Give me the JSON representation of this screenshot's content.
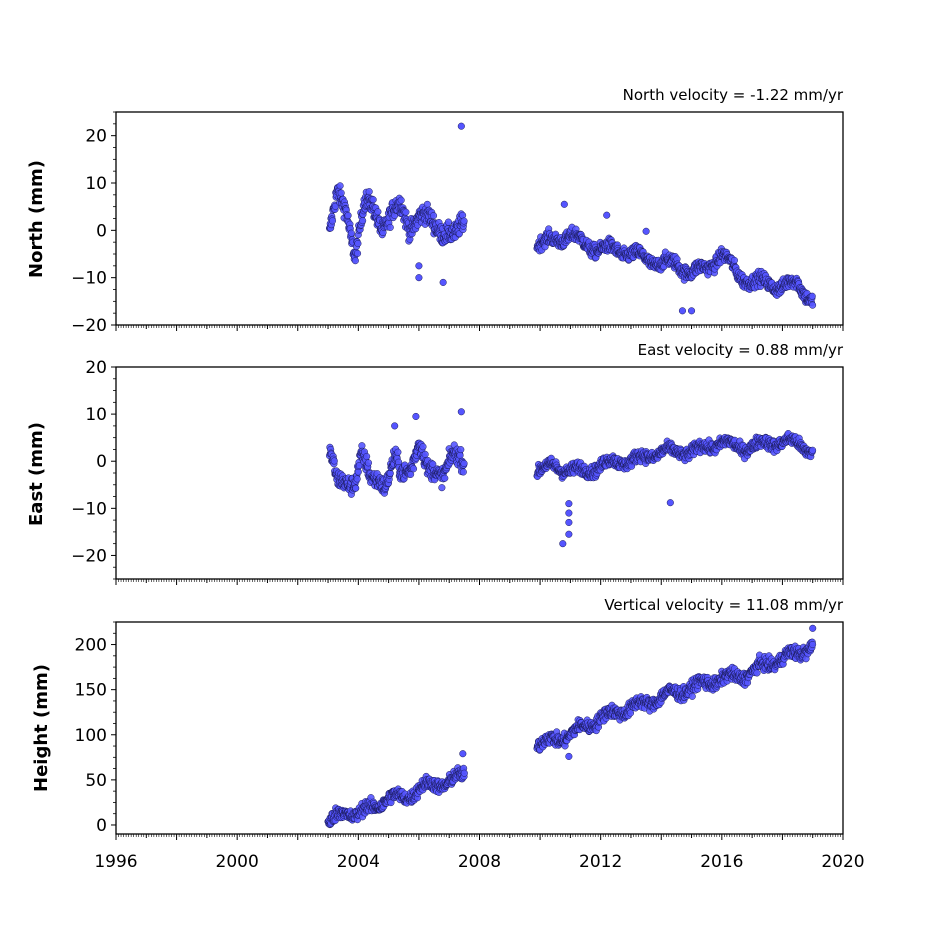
{
  "chart_data": [
    {
      "type": "scatter",
      "title": "North velocity = -1.22 mm/yr",
      "xlabel": "",
      "ylabel": "North (mm)",
      "xlim": [
        1996,
        2020
      ],
      "ylim": [
        -20,
        25
      ],
      "yticks": [
        -20,
        -10,
        0,
        10,
        20
      ],
      "ytick_labels": [
        "−20",
        "−10",
        "0",
        "10",
        "20"
      ],
      "grid": false,
      "marker_color": "#5555ff",
      "segments": [
        {
          "t": [
            2003.05,
            2003.3,
            2003.6,
            2003.9,
            2004.2,
            2004.5,
            2004.8,
            2005.1,
            2005.4,
            2005.7,
            2006.0,
            2006.3,
            2006.6,
            2006.9,
            2007.2,
            2007.5
          ],
          "v": [
            -1,
            7,
            5,
            -5,
            5,
            5,
            1,
            3,
            5,
            1,
            3,
            2,
            1,
            0,
            -2,
            2
          ],
          "noise": 2.6
        },
        {
          "t": [
            2009.9,
            2010.5,
            2011.0,
            2011.5,
            2012.0,
            2012.5,
            2013.0,
            2013.5,
            2014.0,
            2014.5,
            2015.0,
            2015.5,
            2016.0,
            2016.5,
            2017.0,
            2017.5,
            2018.0,
            2018.5,
            2019.0
          ],
          "v": [
            -3,
            -2,
            -1,
            -3,
            -4,
            -4,
            -5,
            -6,
            -7,
            -7,
            -9,
            -8,
            -5,
            -9,
            -11,
            -11,
            -12,
            -11,
            -15
          ],
          "noise": 1.8
        }
      ],
      "outliers": [
        {
          "x": 2007.4,
          "y": 22
        },
        {
          "x": 2006.8,
          "y": -11
        },
        {
          "x": 2006.0,
          "y": -10
        },
        {
          "x": 2006.0,
          "y": -7.5
        },
        {
          "x": 2014.7,
          "y": -17
        },
        {
          "x": 2015.0,
          "y": -17
        },
        {
          "x": 2010.8,
          "y": 5.5
        },
        {
          "x": 2012.2,
          "y": 3.2
        },
        {
          "x": 2013.5,
          "y": -0.2
        }
      ]
    },
    {
      "type": "scatter",
      "title": "East velocity = 0.88 mm/yr",
      "xlabel": "",
      "ylabel": "East (mm)",
      "xlim": [
        1996,
        2020
      ],
      "ylim": [
        -25,
        20
      ],
      "yticks": [
        -20,
        -10,
        0,
        10,
        20
      ],
      "ytick_labels": [
        "−20",
        "−10",
        "0",
        "10",
        "20"
      ],
      "grid": false,
      "marker_color": "#5555ff",
      "segments": [
        {
          "t": [
            2003.05,
            2003.3,
            2003.6,
            2003.9,
            2004.1,
            2004.4,
            2004.7,
            2004.9,
            2005.2,
            2005.4,
            2005.7,
            2006.0,
            2006.3,
            2006.5,
            2006.8,
            2007.1,
            2007.5
          ],
          "v": [
            2,
            -5,
            -4,
            -4,
            1,
            -4,
            -3,
            -5,
            0,
            -3,
            -1,
            4,
            -3,
            -2,
            -2,
            1,
            -1
          ],
          "noise": 2.4
        },
        {
          "t": [
            2009.9,
            2010.5,
            2011.0,
            2011.5,
            2012.0,
            2012.5,
            2013.0,
            2013.5,
            2014.0,
            2014.5,
            2015.0,
            2015.5,
            2016.0,
            2016.5,
            2017.0,
            2017.5,
            2018.0,
            2018.5,
            2019.0
          ],
          "v": [
            -2,
            -1,
            -2,
            -2,
            -1,
            0,
            0,
            1,
            2,
            2,
            2,
            3,
            4,
            3,
            3,
            4,
            4,
            4,
            2
          ],
          "noise": 1.6
        }
      ],
      "outliers": [
        {
          "x": 2007.4,
          "y": 10.5
        },
        {
          "x": 2005.9,
          "y": 9.5
        },
        {
          "x": 2010.75,
          "y": -17.5
        },
        {
          "x": 2010.95,
          "y": -15.5
        },
        {
          "x": 2010.95,
          "y": -13
        },
        {
          "x": 2010.95,
          "y": -11
        },
        {
          "x": 2010.95,
          "y": -9
        },
        {
          "x": 2014.3,
          "y": -8.8
        },
        {
          "x": 2005.2,
          "y": 7.5
        }
      ]
    },
    {
      "type": "scatter",
      "title": "Vertical velocity = 11.08 mm/yr",
      "xlabel": "",
      "ylabel": "Height (mm)",
      "xlim": [
        1996,
        2020
      ],
      "ylim": [
        -10,
        225
      ],
      "yticks": [
        0,
        50,
        100,
        150,
        200
      ],
      "ytick_labels": [
        "0",
        "50",
        "100",
        "150",
        "200"
      ],
      "xticks": [
        1996,
        2000,
        2004,
        2008,
        2012,
        2016,
        2020
      ],
      "xtick_labels": [
        "1996",
        "2000",
        "2004",
        "2008",
        "2012",
        "2016",
        "2020"
      ],
      "grid": false,
      "marker_color": "#5555ff",
      "segments": [
        {
          "t": [
            2003.0,
            2003.5,
            2004.0,
            2004.5,
            2005.0,
            2005.5,
            2006.0,
            2006.5,
            2007.0,
            2007.5
          ],
          "v": [
            0,
            15,
            12,
            20,
            30,
            30,
            40,
            45,
            48,
            55
          ],
          "noise": 9
        },
        {
          "t": [
            2009.9,
            2010.5,
            2011.0,
            2011.5,
            2012.0,
            2012.5,
            2013.0,
            2013.5,
            2014.0,
            2014.5,
            2015.0,
            2015.5,
            2016.0,
            2016.5,
            2017.0,
            2017.5,
            2018.0,
            2018.5,
            2019.0
          ],
          "v": [
            88,
            95,
            100,
            110,
            118,
            125,
            130,
            135,
            142,
            147,
            152,
            158,
            162,
            164,
            170,
            178,
            185,
            190,
            200
          ],
          "noise": 9
        }
      ],
      "outliers": [
        {
          "x": 2019.0,
          "y": 218
        },
        {
          "x": 2007.45,
          "y": 79
        },
        {
          "x": 2010.95,
          "y": 76
        }
      ]
    }
  ]
}
